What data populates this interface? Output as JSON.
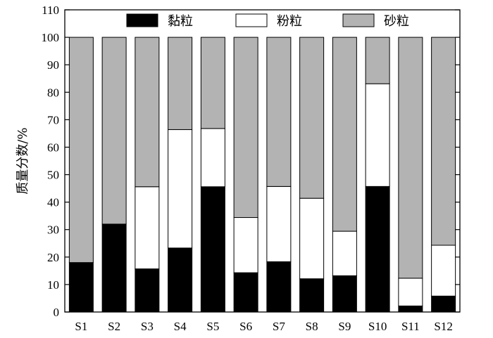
{
  "chart_data": {
    "type": "bar",
    "stacked": true,
    "categories": [
      "S1",
      "S2",
      "S3",
      "S4",
      "S5",
      "S6",
      "S7",
      "S8",
      "S9",
      "S10",
      "S11",
      "S12"
    ],
    "series": [
      {
        "name": "黏粒",
        "color": "#000000",
        "values": [
          18,
          32,
          15.7,
          23.3,
          45.6,
          14.3,
          18.3,
          12.1,
          13.2,
          45.7,
          2.2,
          5.8
        ]
      },
      {
        "name": "粉粒",
        "color": "#ffffff",
        "values": [
          0,
          0,
          29.9,
          43.1,
          21.2,
          20.1,
          27.4,
          29.3,
          16.2,
          37.4,
          10.1,
          18.5
        ]
      },
      {
        "name": "砂粒",
        "color": "#b3b3b3",
        "values": [
          82,
          68,
          54.4,
          33.6,
          33.2,
          65.6,
          54.3,
          58.6,
          70.6,
          16.9,
          87.7,
          75.7
        ]
      }
    ],
    "ylabel": "质量分数/%",
    "xlabel": "",
    "ylim": [
      0,
      110
    ],
    "yticks": [
      0,
      10,
      20,
      30,
      40,
      50,
      60,
      70,
      80,
      90,
      100,
      110
    ],
    "legend_position": "top",
    "grid": false
  }
}
